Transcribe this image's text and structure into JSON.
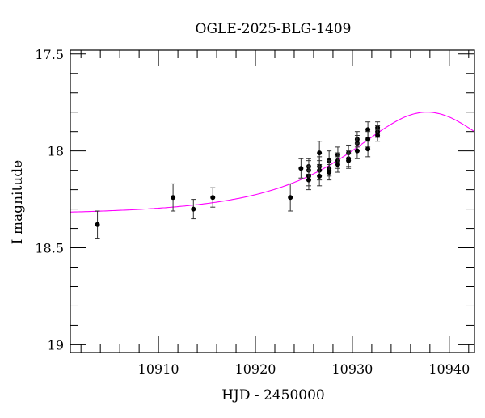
{
  "chart_data": {
    "type": "scatter",
    "title": "OGLE-2025-BLG-1409",
    "xlabel": "HJD - 2450000",
    "ylabel": "I magnitude",
    "xlim": [
      10900.9,
      10942.6
    ],
    "ylim": [
      19.04,
      17.48
    ],
    "y_inverted": true,
    "grid": false,
    "x_ticks": [
      10910,
      10920,
      10930,
      10940
    ],
    "x_tick_labels": [
      "10910",
      "10920",
      "10930",
      "10940"
    ],
    "y_ticks": [
      17.5,
      18,
      18.5,
      19
    ],
    "y_tick_labels": [
      "17.5",
      "18",
      "18.5",
      "19"
    ],
    "colors": {
      "points": "#000000",
      "model": "#ff00ff"
    },
    "points": [
      {
        "t": 10903.7,
        "mag": 18.38,
        "err": 0.07
      },
      {
        "t": 10911.5,
        "mag": 18.24,
        "err": 0.07
      },
      {
        "t": 10913.6,
        "mag": 18.3,
        "err": 0.05
      },
      {
        "t": 10915.6,
        "mag": 18.24,
        "err": 0.05
      },
      {
        "t": 10923.6,
        "mag": 18.24,
        "err": 0.07
      },
      {
        "t": 10924.7,
        "mag": 18.09,
        "err": 0.05
      },
      {
        "t": 10925.5,
        "mag": 18.08,
        "err": 0.04
      },
      {
        "t": 10925.5,
        "mag": 18.1,
        "err": 0.05
      },
      {
        "t": 10925.5,
        "mag": 18.13,
        "err": 0.05
      },
      {
        "t": 10925.5,
        "mag": 18.15,
        "err": 0.05
      },
      {
        "t": 10926.6,
        "mag": 18.01,
        "err": 0.06
      },
      {
        "t": 10926.6,
        "mag": 18.08,
        "err": 0.05
      },
      {
        "t": 10926.6,
        "mag": 18.1,
        "err": 0.05
      },
      {
        "t": 10926.6,
        "mag": 18.13,
        "err": 0.05
      },
      {
        "t": 10927.6,
        "mag": 18.05,
        "err": 0.05
      },
      {
        "t": 10927.6,
        "mag": 18.09,
        "err": 0.04
      },
      {
        "t": 10927.6,
        "mag": 18.11,
        "err": 0.04
      },
      {
        "t": 10928.5,
        "mag": 18.02,
        "err": 0.04
      },
      {
        "t": 10928.5,
        "mag": 18.05,
        "err": 0.04
      },
      {
        "t": 10928.5,
        "mag": 18.07,
        "err": 0.04
      },
      {
        "t": 10929.6,
        "mag": 18.01,
        "err": 0.04
      },
      {
        "t": 10929.6,
        "mag": 18.04,
        "err": 0.04
      },
      {
        "t": 10929.6,
        "mag": 18.05,
        "err": 0.04
      },
      {
        "t": 10930.5,
        "mag": 17.94,
        "err": 0.04
      },
      {
        "t": 10930.5,
        "mag": 17.96,
        "err": 0.04
      },
      {
        "t": 10930.5,
        "mag": 18.0,
        "err": 0.04
      },
      {
        "t": 10931.6,
        "mag": 17.89,
        "err": 0.04
      },
      {
        "t": 10931.6,
        "mag": 17.94,
        "err": 0.04
      },
      {
        "t": 10931.6,
        "mag": 17.99,
        "err": 0.04
      },
      {
        "t": 10932.6,
        "mag": 17.88,
        "err": 0.03
      },
      {
        "t": 10932.6,
        "mag": 17.9,
        "err": 0.03
      },
      {
        "t": 10932.6,
        "mag": 17.92,
        "err": 0.03
      }
    ],
    "model": {
      "type": "PSPL",
      "t0": 10937.7,
      "u0": 0.73,
      "tE": 11.8,
      "I0": 18.33
    }
  }
}
